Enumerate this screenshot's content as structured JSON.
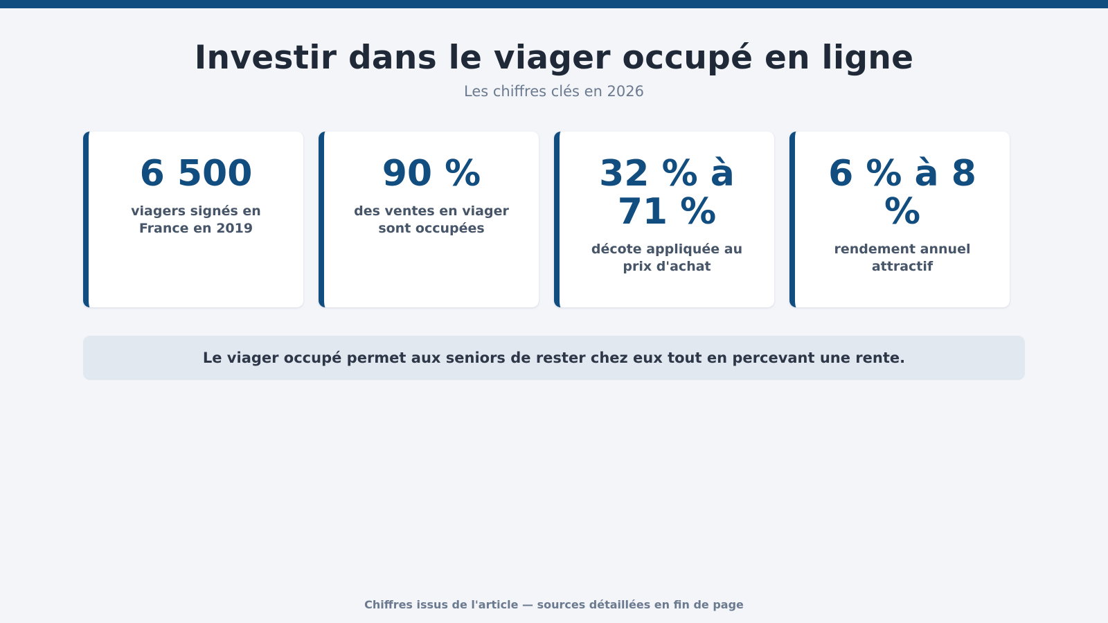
{
  "header": {
    "title": "Investir dans le viager occupé en ligne",
    "subtitle": "Les chiffres clés en 2026"
  },
  "stats": [
    {
      "value": "6 500",
      "label": "viagers signés en France en 2019"
    },
    {
      "value": "90 %",
      "label": "des ventes en viager sont occupées"
    },
    {
      "value": "32 % à 71 %",
      "label": "décote appliquée au prix d'achat"
    },
    {
      "value": "6 % à 8 %",
      "label": "rendement annuel attractif"
    }
  ],
  "callout": {
    "text": "Le viager occupé permet aux seniors de rester chez eux tout en percevant une rente."
  },
  "footer": {
    "note": "Chiffres issus de l'article — sources détaillées en fin de page"
  },
  "colors": {
    "accent": "#124d80",
    "background": "#f3f5f9",
    "callout_background": "#e1e8f0"
  }
}
